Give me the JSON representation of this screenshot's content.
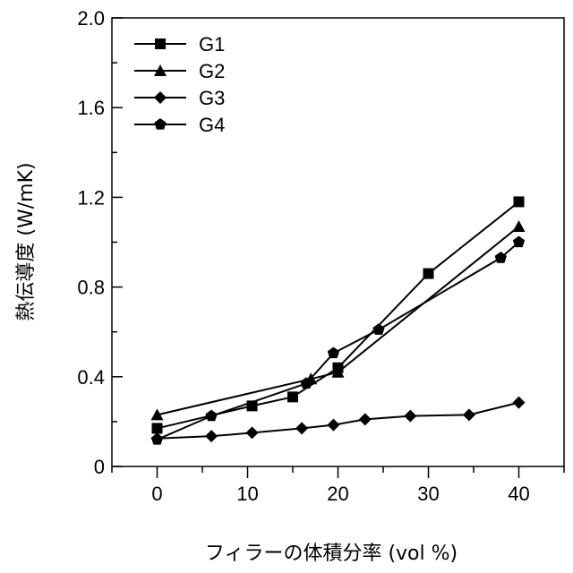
{
  "chart_data": {
    "type": "line",
    "title": "",
    "xlabel": "フィラーの体積分率 (vol %)",
    "ylabel": "熱伝導度 (W/mK)",
    "xlim": [
      -5,
      45
    ],
    "ylim": [
      0,
      2.0
    ],
    "x_ticks": [
      0,
      10,
      20,
      30,
      40
    ],
    "x_tick_labels": [
      "0",
      "10",
      "20",
      "30",
      "40"
    ],
    "y_ticks": [
      0,
      0.4,
      0.8,
      1.2,
      1.6,
      2.0
    ],
    "y_tick_labels": [
      "0",
      "0.4",
      "0.8",
      "1.2",
      "1.6",
      "2.0"
    ],
    "grid": false,
    "legend_position": "top-left",
    "series": [
      {
        "name": "G1",
        "marker": "square",
        "x": [
          0,
          10.5,
          15,
          20,
          30,
          40
        ],
        "y": [
          0.17,
          0.27,
          0.31,
          0.44,
          0.86,
          1.18
        ]
      },
      {
        "name": "G2",
        "marker": "triangle",
        "x": [
          0,
          17,
          20,
          40
        ],
        "y": [
          0.23,
          0.39,
          0.42,
          1.07
        ]
      },
      {
        "name": "G3",
        "marker": "diamond",
        "x": [
          0,
          6,
          10.5,
          16,
          19.5,
          23,
          28,
          34.5,
          40
        ],
        "y": [
          0.125,
          0.135,
          0.15,
          0.17,
          0.185,
          0.21,
          0.225,
          0.23,
          0.285
        ]
      },
      {
        "name": "G4",
        "marker": "pentagon",
        "x": [
          0,
          6,
          16.5,
          19.5,
          24.5,
          38,
          40
        ],
        "y": [
          0.12,
          0.225,
          0.37,
          0.505,
          0.61,
          0.93,
          1.0
        ]
      }
    ]
  }
}
